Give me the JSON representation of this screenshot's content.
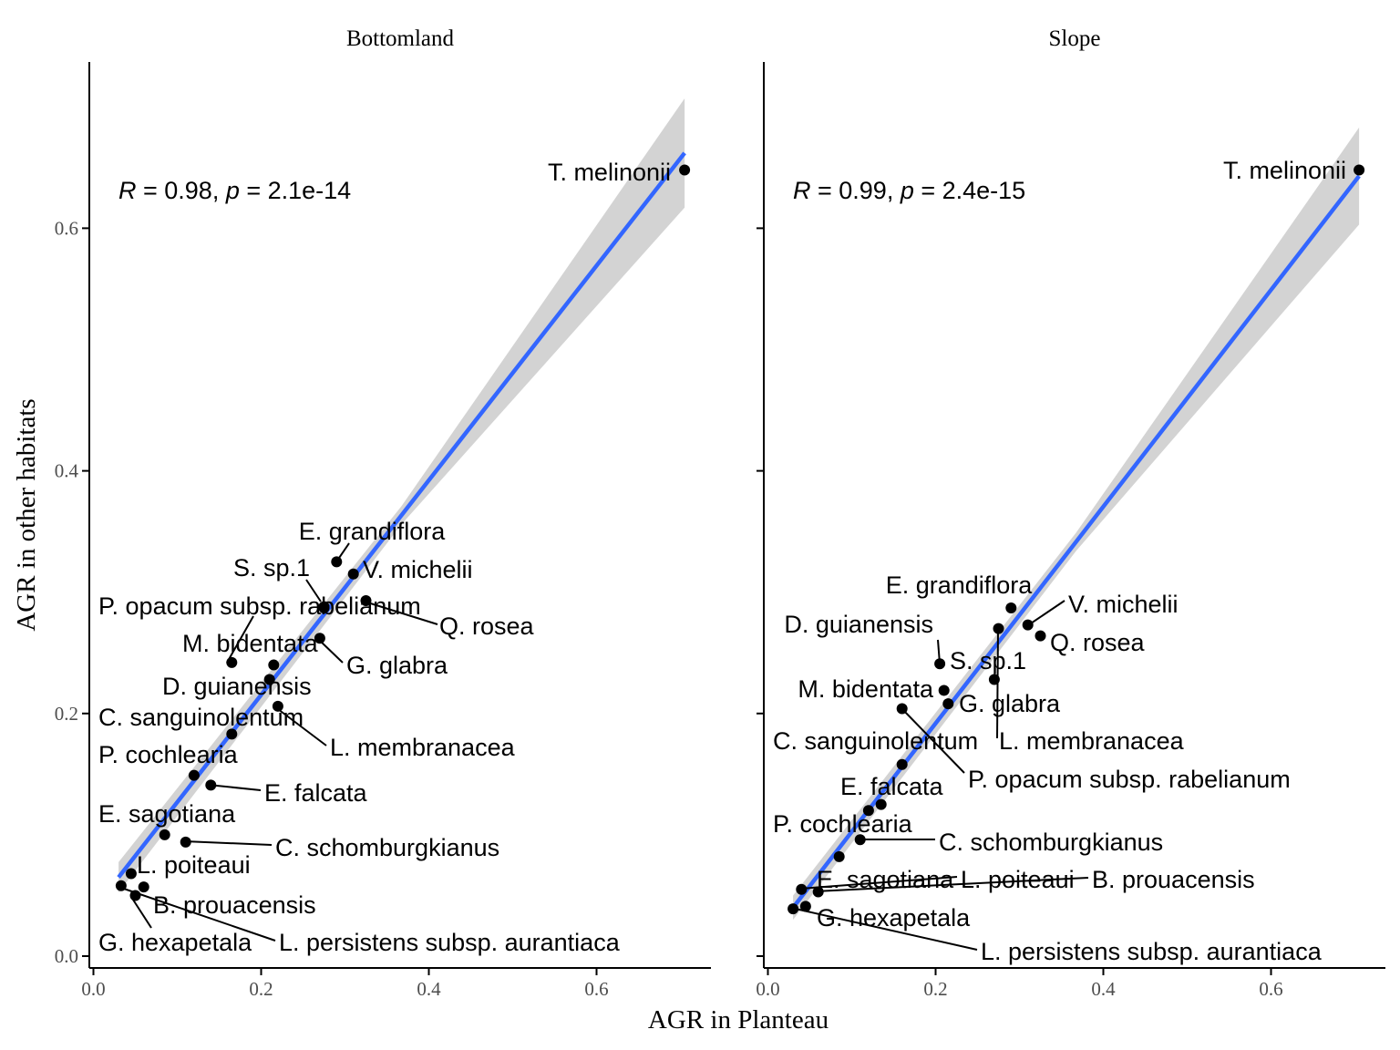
{
  "chart_data": {
    "type": "scatter",
    "xlabel": "AGR in Planteau",
    "ylabel": "AGR in other habitats",
    "xlim": [
      0,
      0.73
    ],
    "ylim": [
      0,
      0.73
    ],
    "x_ticks": [
      {
        "value": 0.0,
        "label": "0.0"
      },
      {
        "value": 0.2,
        "label": "0.2"
      },
      {
        "value": 0.4,
        "label": "0.4"
      },
      {
        "value": 0.6,
        "label": "0.6"
      }
    ],
    "y_ticks": [
      {
        "value": 0.0,
        "label": "0.0"
      },
      {
        "value": 0.2,
        "label": "0.2"
      },
      {
        "value": 0.4,
        "label": "0.4"
      },
      {
        "value": 0.6,
        "label": "0.6"
      }
    ],
    "colors": {
      "fit_line": "#3366FF",
      "confidence_band": "#D3D3D3",
      "points": "#000000"
    },
    "grid": false,
    "panels": [
      {
        "title": "Bottomland",
        "stat": {
          "r_symbol": "R",
          "r_value": " = 0.98, ",
          "p_symbol": "p",
          "p_value": " = 2.1e-14"
        },
        "fit": {
          "x0": 0.03,
          "y0": 0.065,
          "x1": 0.705,
          "y1": 0.662,
          "band_start": 0.025,
          "band_end": 0.09
        },
        "points": [
          {
            "name": "T. melinonii",
            "x": 0.705,
            "y": 0.648
          },
          {
            "name": "E. grandiflora",
            "x": 0.29,
            "y": 0.325
          },
          {
            "name": "V. michelii",
            "x": 0.31,
            "y": 0.315
          },
          {
            "name": "S. sp.1",
            "x": 0.275,
            "y": 0.287
          },
          {
            "name": "P. opacum subsp. rabelianum",
            "x": 0.325,
            "y": 0.293
          },
          {
            "name": "Q. rosea",
            "x": 0.275,
            "y": 0.288
          },
          {
            "name": "G. glabra",
            "x": 0.27,
            "y": 0.262
          },
          {
            "name": "M. bidentata",
            "x": 0.165,
            "y": 0.242
          },
          {
            "name": "D. guianensis",
            "x": 0.21,
            "y": 0.228
          },
          {
            "name": "C. sanguinolentum",
            "x": 0.215,
            "y": 0.24
          },
          {
            "name": "L. membranacea",
            "x": 0.22,
            "y": 0.206
          },
          {
            "name": "P. cochlearia",
            "x": 0.165,
            "y": 0.183
          },
          {
            "name": "E. falcata",
            "x": 0.14,
            "y": 0.141
          },
          {
            "name": "C. schomburgkianus",
            "x": 0.11,
            "y": 0.094
          },
          {
            "name": "E. sagotiana",
            "x": 0.085,
            "y": 0.1
          },
          {
            "name": "L. poiteaui",
            "x": 0.045,
            "y": 0.068
          },
          {
            "name": "B. prouacensis",
            "x": 0.05,
            "y": 0.05
          },
          {
            "name": "G. hexapetala",
            "x": 0.033,
            "y": 0.058
          },
          {
            "name": "L. persistens subsp. aurantiaca",
            "x": 0.06,
            "y": 0.057
          },
          {
            "name": "",
            "x": 0.12,
            "y": 0.149
          }
        ]
      },
      {
        "title": "Slope",
        "stat": {
          "r_symbol": "R",
          "r_value": " = 0.99, ",
          "p_symbol": "p",
          "p_value": " = 2.4e-15"
        },
        "fit": {
          "x0": 0.03,
          "y0": 0.04,
          "x1": 0.705,
          "y1": 0.643,
          "band_start": 0.02,
          "band_end": 0.08
        },
        "points": [
          {
            "name": "T. melinonii",
            "x": 0.705,
            "y": 0.648
          },
          {
            "name": "E. grandiflora",
            "x": 0.29,
            "y": 0.287
          },
          {
            "name": "V. michelii",
            "x": 0.31,
            "y": 0.273
          },
          {
            "name": "Q. rosea",
            "x": 0.325,
            "y": 0.264
          },
          {
            "name": "D. guianensis",
            "x": 0.205,
            "y": 0.241
          },
          {
            "name": "S. sp.1",
            "x": 0.27,
            "y": 0.228
          },
          {
            "name": "M. bidentata",
            "x": 0.21,
            "y": 0.219
          },
          {
            "name": "G. glabra",
            "x": 0.215,
            "y": 0.208
          },
          {
            "name": "C. sanguinolentum",
            "x": 0.16,
            "y": 0.158
          },
          {
            "name": "L. membranacea",
            "x": 0.275,
            "y": 0.27
          },
          {
            "name": "P. opacum subsp. rabelianum",
            "x": 0.16,
            "y": 0.204
          },
          {
            "name": "E. falcata",
            "x": 0.135,
            "y": 0.125
          },
          {
            "name": "P. cochlearia",
            "x": 0.12,
            "y": 0.12
          },
          {
            "name": "C. schomburgkianus",
            "x": 0.11,
            "y": 0.096
          },
          {
            "name": "E. sagotiana",
            "x": 0.04,
            "y": 0.055
          },
          {
            "name": "L. poiteaui",
            "x": 0.06,
            "y": 0.053
          },
          {
            "name": "B. prouacensis",
            "x": 0.085,
            "y": 0.082
          },
          {
            "name": "G. hexapetala",
            "x": 0.045,
            "y": 0.041
          },
          {
            "name": "L. persistens subsp. aurantiaca",
            "x": 0.03,
            "y": 0.039
          }
        ]
      }
    ]
  }
}
